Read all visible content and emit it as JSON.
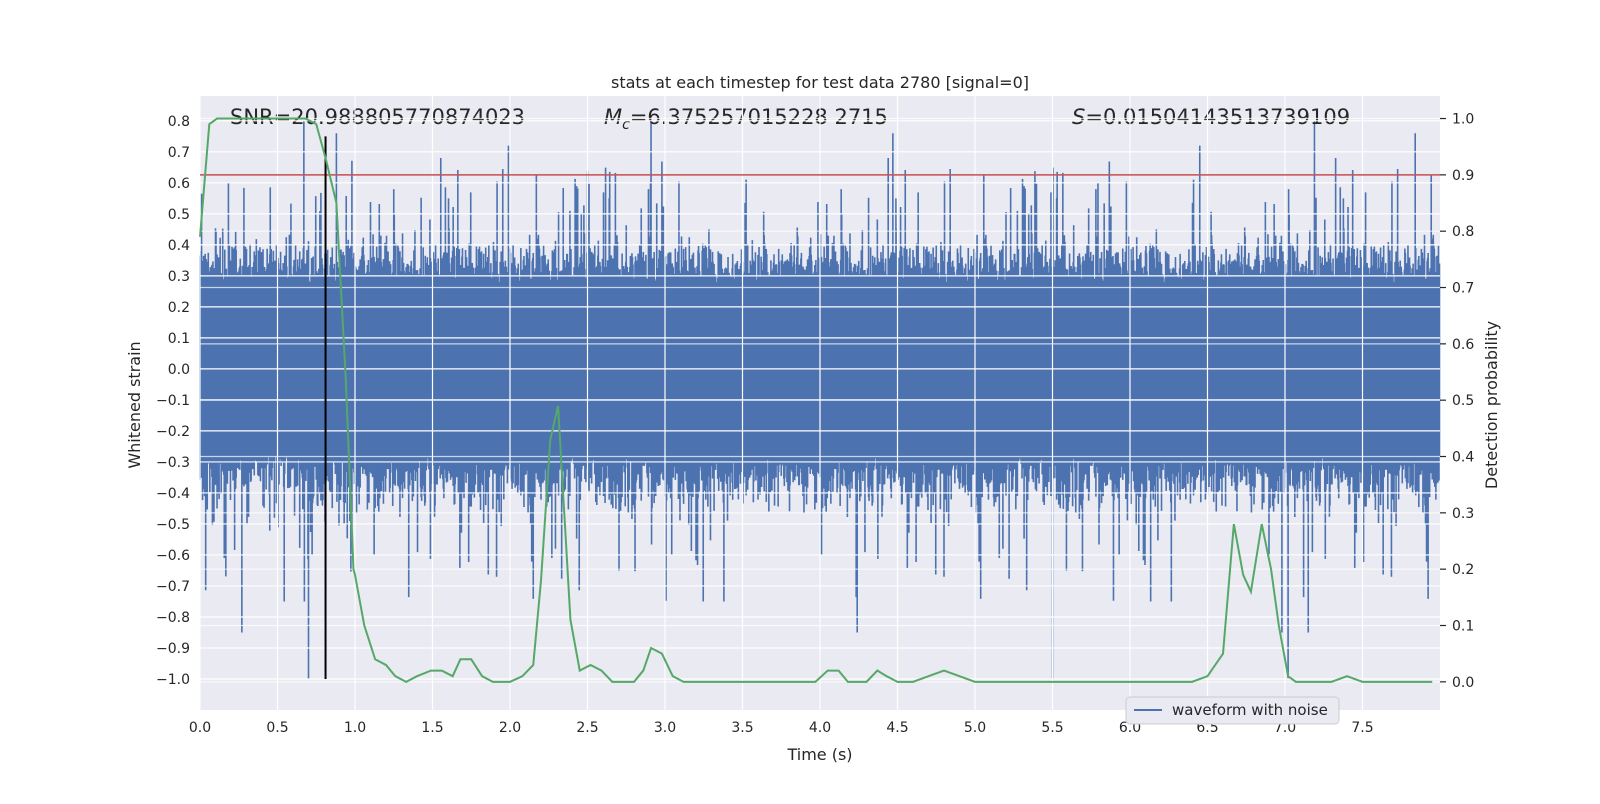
{
  "chart_data": {
    "type": "line",
    "title": "stats at each timestep for test data 2780 [signal=0]",
    "xlabel": "Time (s)",
    "ylabel": "Whitened strain",
    "ylabel_right": "Detection probability",
    "xlim": [
      0,
      8
    ],
    "ylim": [
      -1.1,
      0.88
    ],
    "ylim_right": [
      -0.05,
      1.04
    ],
    "x_ticks": [
      0.0,
      0.5,
      1.0,
      1.5,
      2.0,
      2.5,
      3.0,
      3.5,
      4.0,
      4.5,
      5.0,
      5.5,
      6.0,
      6.5,
      7.0,
      7.5
    ],
    "x_tick_labels": [
      "0.0",
      "0.5",
      "1.0",
      "1.5",
      "2.0",
      "2.5",
      "3.0",
      "3.5",
      "4.0",
      "4.5",
      "5.0",
      "5.5",
      "6.0",
      "6.5",
      "7.0",
      "7.5"
    ],
    "y_ticks": [
      0.8,
      0.7,
      0.6,
      0.5,
      0.4,
      0.3,
      0.2,
      0.1,
      0.0,
      -0.1,
      -0.2,
      -0.3,
      -0.4,
      -0.5,
      -0.6,
      -0.7,
      -0.8,
      -0.9,
      -1.0
    ],
    "y_tick_labels": [
      "0.8",
      "0.7",
      "0.6",
      "0.5",
      "0.4",
      "0.3",
      "0.2",
      "0.1",
      "0.0",
      "−0.1",
      "−0.2",
      "−0.3",
      "−0.4",
      "−0.5",
      "−0.6",
      "−0.7",
      "−0.8",
      "−0.9",
      "−1.0"
    ],
    "y_ticks_right": [
      1.0,
      0.9,
      0.8,
      0.7,
      0.6,
      0.5,
      0.4,
      0.3,
      0.2,
      0.1,
      0.0
    ],
    "y_tick_labels_right": [
      "1.0",
      "0.9",
      "0.8",
      "0.7",
      "0.6",
      "0.5",
      "0.4",
      "0.3",
      "0.2",
      "0.1",
      "0.0"
    ],
    "annotations": {
      "snr": "SNR=20.988805770874023",
      "mc_symbol": "M",
      "mc_sub": "c",
      "mc_value": "=6.375257015228 2715",
      "s_symbol": "S",
      "s_value": "=0.01504143513739109"
    },
    "threshold_right": 0.9,
    "marker_time": 0.81,
    "waveform": {
      "name": "waveform with noise",
      "color": "#4c72b0",
      "seed": 2780,
      "n_samples": 2400,
      "typical_amplitude": 0.32,
      "peak_max": 0.8,
      "trough_min": -1.0,
      "spike_times": [
        0.67,
        0.88,
        1.99,
        2.91,
        4.47,
        6.45,
        7.19,
        7.84
      ],
      "dip_times": [
        0.27,
        0.7,
        4.24,
        5.5,
        6.98,
        7.02,
        7.15
      ]
    },
    "series": [
      {
        "name": "detection probability",
        "color": "#55a868",
        "axis": "right",
        "x": [
          0.0,
          0.06,
          0.11,
          0.2,
          0.3,
          0.4,
          0.5,
          0.6,
          0.68,
          0.75,
          0.81,
          0.88,
          0.94,
          0.99,
          1.0,
          1.06,
          1.13,
          1.2,
          1.26,
          1.33,
          1.4,
          1.49,
          1.56,
          1.63,
          1.68,
          1.75,
          1.82,
          1.89,
          1.96,
          2.0,
          2.08,
          2.15,
          2.2,
          2.26,
          2.31,
          2.39,
          2.45,
          2.52,
          2.59,
          2.66,
          2.72,
          2.8,
          2.86,
          2.91,
          2.98,
          3.05,
          3.12,
          3.2,
          3.5,
          3.8,
          3.97,
          4.05,
          4.12,
          4.18,
          4.25,
          4.3,
          4.37,
          4.43,
          4.5,
          4.6,
          4.7,
          4.8,
          4.9,
          5.0,
          5.1,
          5.2,
          5.4,
          5.6,
          5.8,
          6.0,
          6.2,
          6.4,
          6.5,
          6.6,
          6.67,
          6.73,
          6.78,
          6.85,
          6.91,
          6.96,
          7.02,
          7.07,
          7.14,
          7.2,
          7.3,
          7.4,
          7.5,
          7.6,
          7.7,
          7.8,
          7.95
        ],
        "values": [
          0.79,
          0.99,
          1.0,
          1.0,
          1.0,
          1.0,
          1.0,
          1.0,
          1.0,
          0.99,
          0.93,
          0.85,
          0.54,
          0.2,
          0.19,
          0.1,
          0.04,
          0.03,
          0.01,
          0.0,
          0.01,
          0.02,
          0.02,
          0.01,
          0.04,
          0.04,
          0.01,
          0.0,
          0.0,
          0.0,
          0.01,
          0.03,
          0.18,
          0.43,
          0.49,
          0.11,
          0.02,
          0.03,
          0.02,
          0.0,
          0.0,
          0.0,
          0.02,
          0.06,
          0.05,
          0.01,
          0.0,
          0.0,
          0.0,
          0.0,
          0.0,
          0.02,
          0.02,
          0.0,
          0.0,
          0.0,
          0.02,
          0.01,
          0.0,
          0.0,
          0.01,
          0.02,
          0.01,
          0.0,
          0.0,
          0.0,
          0.0,
          0.0,
          0.0,
          0.0,
          0.0,
          0.0,
          0.01,
          0.05,
          0.28,
          0.19,
          0.16,
          0.28,
          0.2,
          0.1,
          0.01,
          0.0,
          0.0,
          0.0,
          0.0,
          0.01,
          0.0,
          0.0,
          0.0,
          0.0,
          0.0
        ]
      }
    ],
    "legend": {
      "placement": "bottom-right",
      "entries": [
        "waveform with noise"
      ]
    },
    "grid": true,
    "colors": {
      "background": "#eaeaf2",
      "grid": "#ffffff",
      "threshold": "#c44e52",
      "marker": "#000000"
    }
  }
}
